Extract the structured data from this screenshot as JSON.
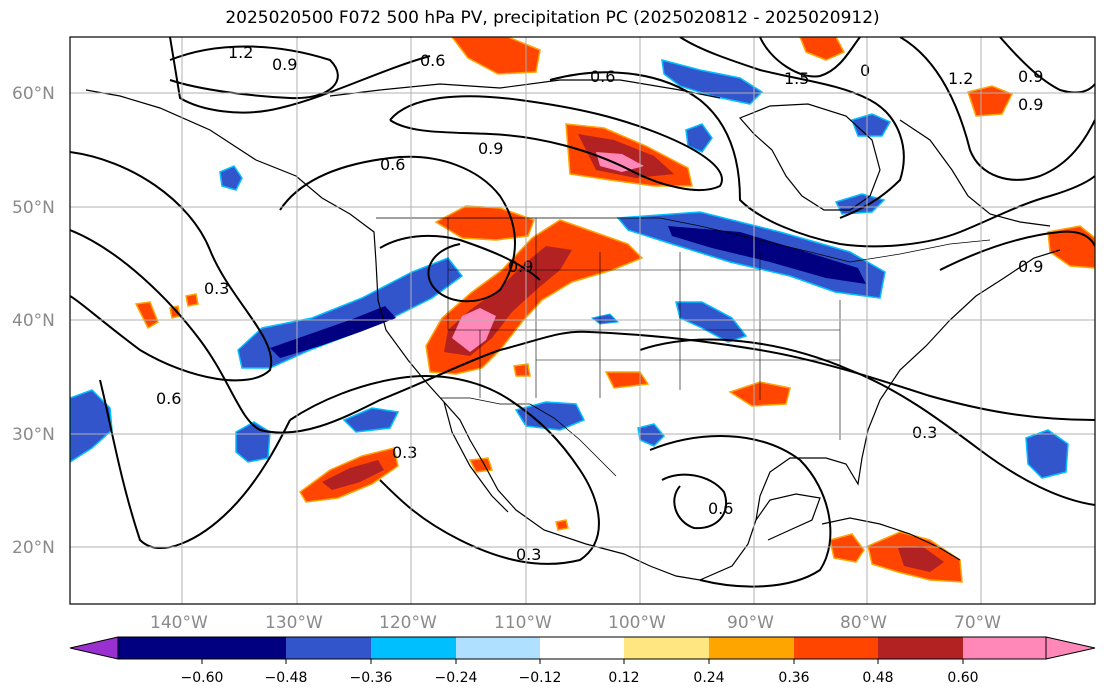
{
  "title": "2025020500 F072 500 hPa PV, precipitation PC (2025020812 - 2025020912)",
  "map": {
    "lat_labels": [
      "60°N",
      "50°N",
      "40°N",
      "30°N",
      "20°N"
    ],
    "lon_labels": [
      "140°W",
      "130°W",
      "120°W",
      "110°W",
      "100°W",
      "90°W",
      "80°W",
      "70°W"
    ],
    "contour_labels": [
      "1.2",
      "0.9",
      "0.6",
      "0.6",
      "1.5",
      "0",
      "1.2",
      "0.9",
      "0.9",
      "0.6",
      "0.9",
      "0.3",
      "0.9",
      "0.6",
      "0.3",
      "0.3",
      "0.6",
      "0.3",
      "0.9"
    ],
    "gridline_color": "#b0b0b0",
    "contour_color": "#000000"
  },
  "colorbar": {
    "ticks": [
      "−0.60",
      "−0.48",
      "−0.36",
      "−0.24",
      "−0.12",
      "0.12",
      "0.24",
      "0.36",
      "0.48",
      "0.60"
    ],
    "colors": [
      "#9b30d0",
      "#000080",
      "#3355cc",
      "#00bfff",
      "#b0e0ff",
      "#ffffff",
      "#ffe680",
      "#ffa500",
      "#ff4500",
      "#b22222",
      "#ff88b8"
    ]
  }
}
